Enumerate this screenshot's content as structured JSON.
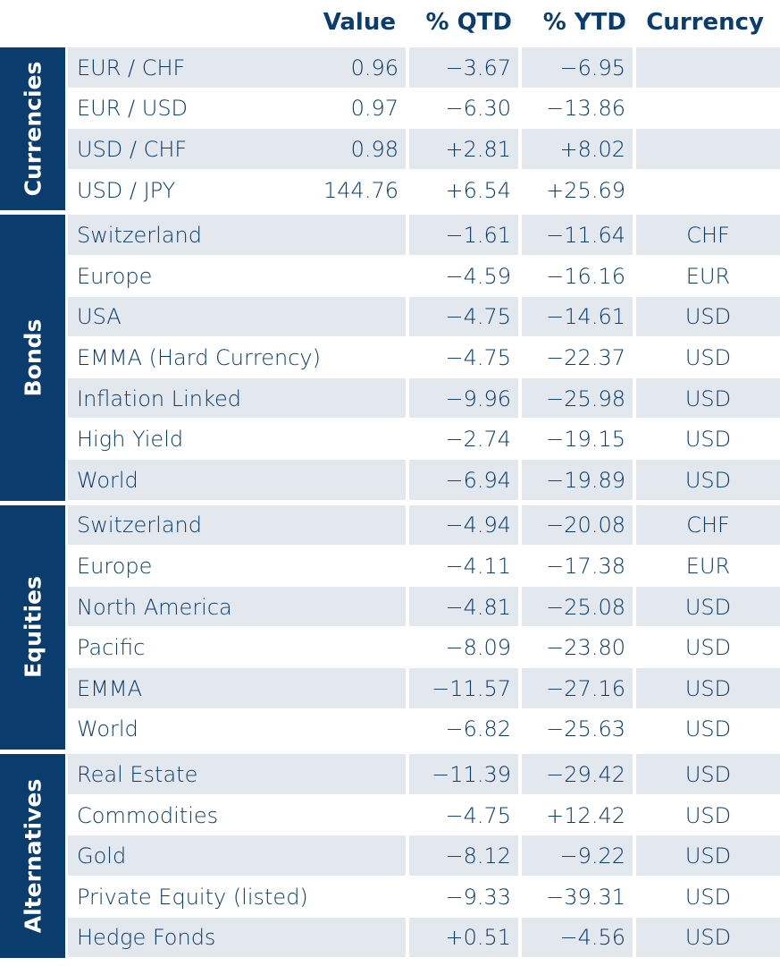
{
  "header": {
    "value": "Value",
    "qtd": "% QTD",
    "ytd": "% YTD",
    "currency": "Currency"
  },
  "sections": [
    {
      "label": "Currencies",
      "rows": [
        {
          "name": "EUR / CHF",
          "value": "0.96",
          "qtd": "−3.67",
          "ytd": "−6.95",
          "currency": ""
        },
        {
          "name": "EUR / USD",
          "value": "0.97",
          "qtd": "−6.30",
          "ytd": "−13.86",
          "currency": ""
        },
        {
          "name": "USD / CHF",
          "value": "0.98",
          "qtd": "+2.81",
          "ytd": "+8.02",
          "currency": ""
        },
        {
          "name": "USD / JPY",
          "value": "144.76",
          "qtd": "+6.54",
          "ytd": "+25.69",
          "currency": ""
        }
      ]
    },
    {
      "label": "Bonds",
      "rows": [
        {
          "name": "Switzerland",
          "value": "",
          "qtd": "−1.61",
          "ytd": "−11.64",
          "currency": "CHF"
        },
        {
          "name": "Europe",
          "value": "",
          "qtd": "−4.59",
          "ytd": "−16.16",
          "currency": "EUR"
        },
        {
          "name": "USA",
          "value": "",
          "qtd": "−4.75",
          "ytd": "−14.61",
          "currency": "USD"
        },
        {
          "name": "EMMA (Hard Currency)",
          "value": "",
          "qtd": "−4.75",
          "ytd": "−22.37",
          "currency": "USD"
        },
        {
          "name": "Inflation Linked",
          "value": "",
          "qtd": "−9.96",
          "ytd": "−25.98",
          "currency": "USD"
        },
        {
          "name": "High Yield",
          "value": "",
          "qtd": "−2.74",
          "ytd": "−19.15",
          "currency": "USD"
        },
        {
          "name": "World",
          "value": "",
          "qtd": "−6.94",
          "ytd": "−19.89",
          "currency": "USD"
        }
      ]
    },
    {
      "label": "Equities",
      "rows": [
        {
          "name": "Switzerland",
          "value": "",
          "qtd": "−4.94",
          "ytd": "−20.08",
          "currency": "CHF"
        },
        {
          "name": "Europe",
          "value": "",
          "qtd": "−4.11",
          "ytd": "−17.38",
          "currency": "EUR"
        },
        {
          "name": "North America",
          "value": "",
          "qtd": "−4.81",
          "ytd": "−25.08",
          "currency": "USD"
        },
        {
          "name": "Pacific",
          "value": "",
          "qtd": "−8.09",
          "ytd": "−23.80",
          "currency": "USD"
        },
        {
          "name": "EMMA",
          "value": "",
          "qtd": "−11.57",
          "ytd": "−27.16",
          "currency": "USD"
        },
        {
          "name": "World",
          "value": "",
          "qtd": "−6.82",
          "ytd": "−25.63",
          "currency": "USD"
        }
      ]
    },
    {
      "label": "Alternatives",
      "rows": [
        {
          "name": "Real Estate",
          "value": "",
          "qtd": "−11.39",
          "ytd": "−29.42",
          "currency": "USD"
        },
        {
          "name": "Commodities",
          "value": "",
          "qtd": "−4.75",
          "ytd": "+12.42",
          "currency": "USD"
        },
        {
          "name": "Gold",
          "value": "",
          "qtd": "−8.12",
          "ytd": "−9.22",
          "currency": "USD"
        },
        {
          "name": "Private Equity (listed)",
          "value": "",
          "qtd": "−9.33",
          "ytd": "−39.31",
          "currency": "USD"
        },
        {
          "name": "Hedge Fonds",
          "value": "",
          "qtd": "+0.51",
          "ytd": "−4.56",
          "currency": "USD"
        }
      ]
    }
  ]
}
